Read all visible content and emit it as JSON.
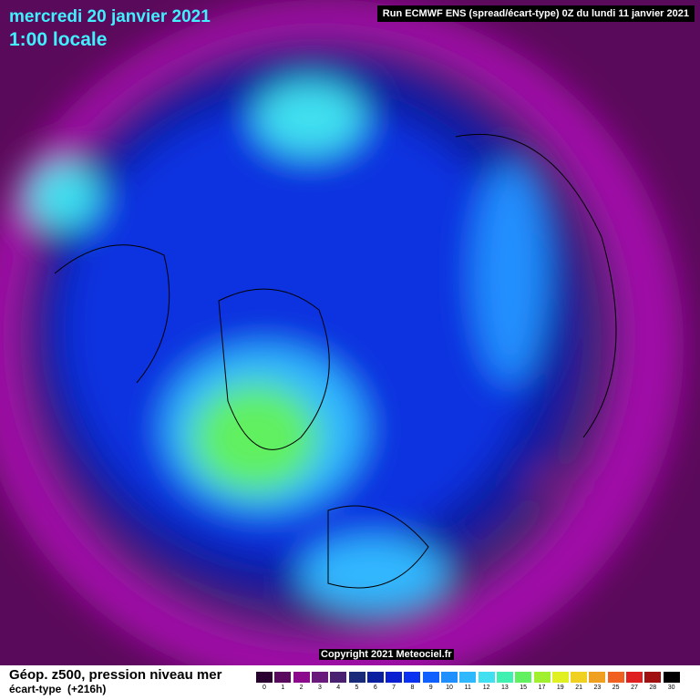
{
  "header": {
    "date": "mercredi 20 janvier 2021",
    "time": "1:00 locale",
    "run": "Run ECMWF ENS (spread/écart-type) 0Z du lundi 11 janvier 2021"
  },
  "copyright": "Copyright 2021 Meteociel.fr",
  "footer": {
    "title": "Géop. z500, pression niveau mer",
    "subtitle": "écart-type  (+216h)"
  },
  "scale": [
    {
      "label": 0,
      "color": "#2a0030"
    },
    {
      "label": 1,
      "color": "#5a0a5e"
    },
    {
      "label": 2,
      "color": "#8c0a8c"
    },
    {
      "label": 3,
      "color": "#6a1a7a"
    },
    {
      "label": 4,
      "color": "#4a2070"
    },
    {
      "label": 5,
      "color": "#1a2a7a"
    },
    {
      "label": 6,
      "color": "#0a1ea0"
    },
    {
      "label": 7,
      "color": "#0a20d0"
    },
    {
      "label": 8,
      "color": "#0a30f0"
    },
    {
      "label": 9,
      "color": "#1060ff"
    },
    {
      "label": 10,
      "color": "#2090ff"
    },
    {
      "label": 11,
      "color": "#30b8ff"
    },
    {
      "label": 12,
      "color": "#40e0f0"
    },
    {
      "label": 13,
      "color": "#40f0b0"
    },
    {
      "label": 15,
      "color": "#60f060"
    },
    {
      "label": 17,
      "color": "#a0f030"
    },
    {
      "label": 19,
      "color": "#e0f020"
    },
    {
      "label": 21,
      "color": "#f0d020"
    },
    {
      "label": 23,
      "color": "#f0a020"
    },
    {
      "label": 25,
      "color": "#f06020"
    },
    {
      "label": 27,
      "color": "#e02020"
    },
    {
      "label": 28,
      "color": "#a01010"
    },
    {
      "label": 30,
      "color": "#000000"
    }
  ]
}
